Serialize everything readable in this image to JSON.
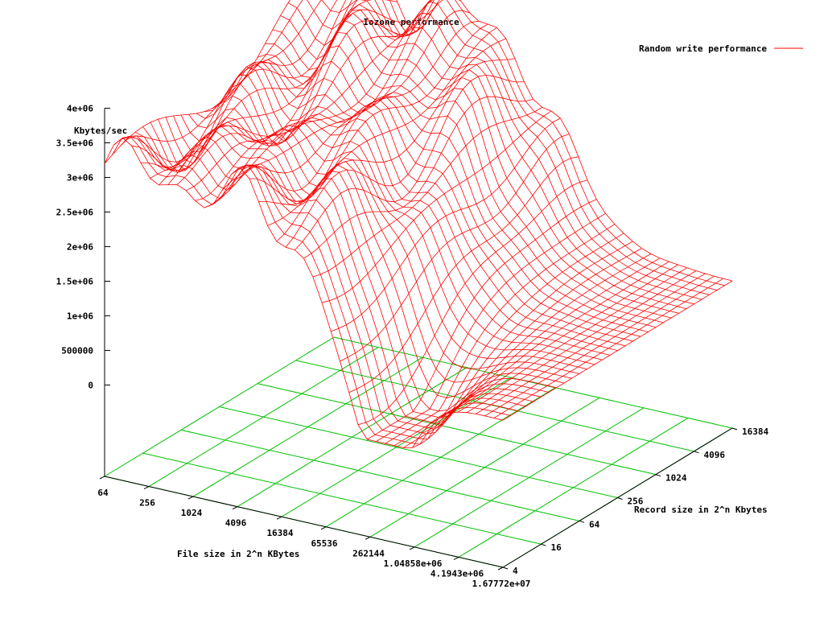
{
  "chart_data": {
    "type": "surface3d",
    "title": "Iozone performance",
    "zlabel": "Kbytes/sec",
    "xlabel": "File size in 2^n KBytes",
    "ylabel": "Record size in 2^n Kbytes",
    "legend": {
      "label": "Random write performance",
      "position": "top-right"
    },
    "z_ticks": [
      "0",
      "500000",
      "1e+06",
      "1.5e+06",
      "2e+06",
      "2.5e+06",
      "3e+06",
      "3.5e+06",
      "4e+06"
    ],
    "z_range": [
      0,
      4000000
    ],
    "x_ticks": [
      "64",
      "256",
      "1024",
      "4096",
      "16384",
      "65536",
      "262144",
      "1.04858e+06",
      "4.1943e+06",
      "1.67772e+07"
    ],
    "y_ticks": [
      "4",
      "16",
      "64",
      "256",
      "1024",
      "4096",
      "16384"
    ],
    "x_range_log2": [
      6,
      24
    ],
    "y_range_log2": [
      2,
      14
    ],
    "base_grid": "on",
    "series": [
      {
        "name": "Random write performance",
        "color": "#ff0000",
        "description_values": {
          "peak_kbytes_per_sec": 3900000,
          "small_file_plateau_kbytes_per_sec": 3200000,
          "large_file_floor_kbytes_per_sec": 800000
        }
      }
    ],
    "colors": {
      "surface": "#ff0000",
      "grid": "#00c000",
      "axis": "#000000"
    }
  }
}
